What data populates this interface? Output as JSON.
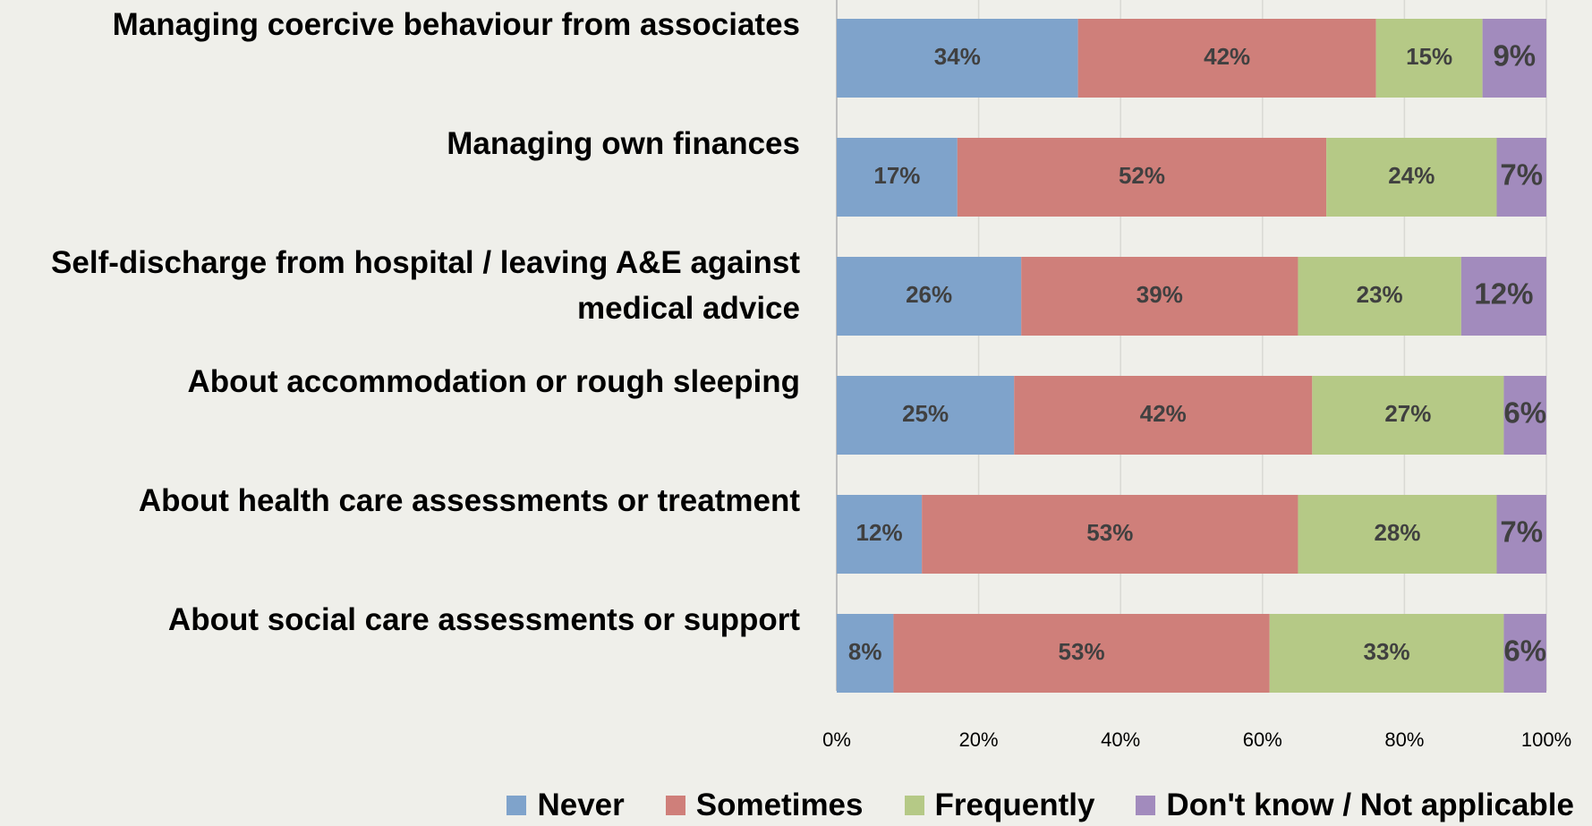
{
  "chart_data": {
    "type": "stacked-barh",
    "categories": [
      "Managing coercive behaviour from associates",
      "Managing own finances",
      "Self-discharge from hospital / leaving A&E against medical advice",
      "About accommodation or rough sleeping",
      "About health care assessments or treatment",
      "About social care assessments or support"
    ],
    "series": [
      {
        "name": "Never",
        "color": "#7fa3cb",
        "values": [
          34,
          17,
          26,
          25,
          12,
          8
        ],
        "value_labels": [
          "34%",
          "17%",
          "26%",
          "25%",
          "12%",
          "8%"
        ]
      },
      {
        "name": "Sometimes",
        "color": "#cf7f7a",
        "values": [
          42,
          52,
          39,
          42,
          53,
          53
        ],
        "value_labels": [
          "42%",
          "52%",
          "39%",
          "42%",
          "53%",
          "53%"
        ]
      },
      {
        "name": "Frequently",
        "color": "#b5c986",
        "values": [
          15,
          24,
          23,
          27,
          28,
          33
        ],
        "value_labels": [
          "15%",
          "24%",
          "23%",
          "27%",
          "28%",
          "33%"
        ]
      },
      {
        "name": "Don't know / Not applicable",
        "color": "#a28bbd",
        "values": [
          9,
          7,
          12,
          6,
          7,
          6
        ],
        "value_labels": [
          "9%",
          "7%",
          "12%",
          "6%",
          "7%",
          "6%"
        ]
      }
    ],
    "xlim": [
      0,
      100
    ],
    "xticks": [
      {
        "value": 0,
        "label": "0%"
      },
      {
        "value": 20,
        "label": "20%"
      },
      {
        "value": 40,
        "label": "40%"
      },
      {
        "value": 60,
        "label": "60%"
      },
      {
        "value": 80,
        "label": "80%"
      },
      {
        "value": 100,
        "label": "100%"
      }
    ],
    "grid": true,
    "legend": "bottom"
  }
}
